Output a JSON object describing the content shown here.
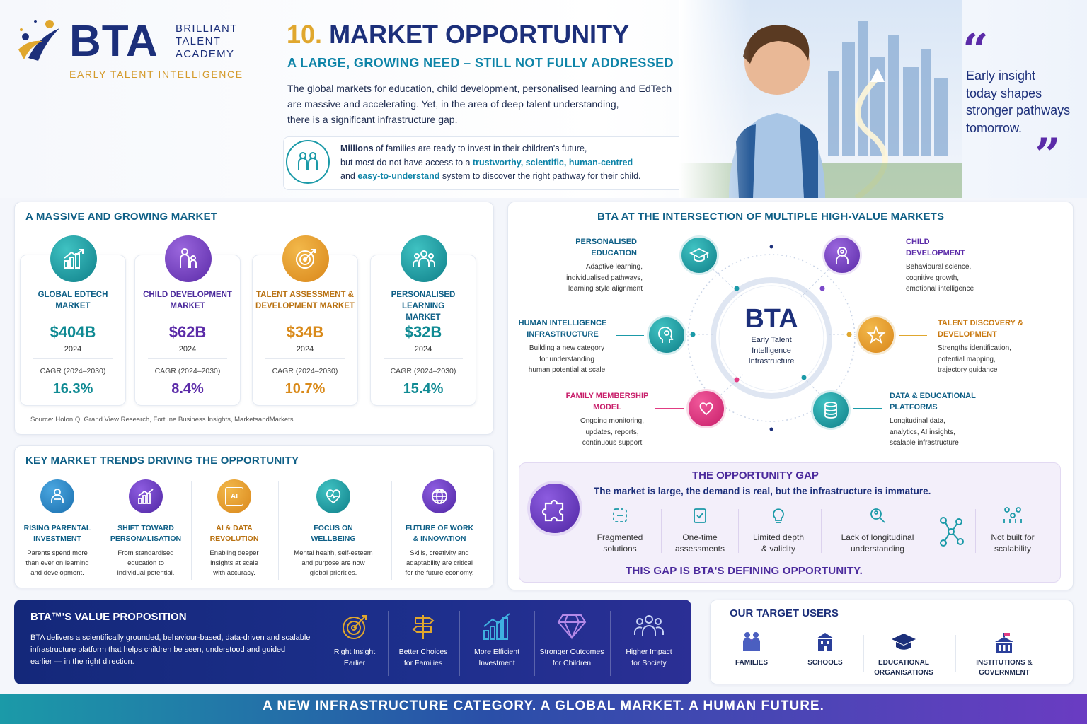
{
  "brand": {
    "logo_letters": "BTA",
    "name_line1": "BRILLIANT",
    "name_line2": "TALENT",
    "name_line3": "ACADEMY",
    "tagline": "EARLY TALENT INTELLIGENCE"
  },
  "header": {
    "number": "10.",
    "title": "MARKET OPPORTUNITY",
    "subtitle": "A LARGE, GROWING NEED – STILL NOT FULLY ADDRESSED",
    "intro": [
      "The global markets for education, child development, personalised learning and EdTech",
      "are massive and accelerating. Yet, in the area of deep talent understanding,",
      "there is a significant infrastructure gap."
    ],
    "callout": {
      "p1": "Millions",
      "p2": " of families are ready to invest in their children's future,",
      "p3": "but most do not have access to a ",
      "p4": "trustworthy, scientific, human-centred",
      "p5": "and ",
      "p6": "easy-to-understand",
      "p7": " system to discover the right pathway for their child."
    },
    "quote": [
      "Early insight",
      "today shapes",
      "stronger pathways",
      "tomorrow."
    ],
    "quote_open": "“",
    "quote_close": "”"
  },
  "market": {
    "title": "A MASSIVE AND GROWING MARKET",
    "source": "Source: HolonIQ, Grand View Research, Fortune Business Insights, MarketsandMarkets",
    "items": [
      {
        "name1": "GLOBAL EDTECH",
        "name2": "MARKET",
        "value": "$404B",
        "year": "2024",
        "cagr_label": "CAGR (2024–2030)",
        "cagr": "16.3%",
        "color": "#0f8a93",
        "icon": "chart-icon"
      },
      {
        "name1": "CHILD DEVELOPMENT",
        "name2": "MARKET",
        "value": "$62B",
        "year": "2024",
        "cagr_label": "CAGR (2024–2030)",
        "cagr": "8.4%",
        "color": "#5b2ba8",
        "icon": "parent-child-icon"
      },
      {
        "name1": "TALENT ASSESSMENT &",
        "name2": "DEVELOPMENT MARKET",
        "value": "$34B",
        "year": "2024",
        "cagr_label": "CAGR (2024–2030)",
        "cagr": "10.7%",
        "color": "#d98a1a",
        "icon": "target-icon"
      },
      {
        "name1": "PERSONALISED LEARNING",
        "name2": "MARKET",
        "value": "$32B",
        "year": "2024",
        "cagr_label": "CAGR (2024–2030)",
        "cagr": "15.4%",
        "color": "#0f8a93",
        "icon": "group-icon"
      }
    ]
  },
  "trends": {
    "title": "KEY MARKET TRENDS DRIVING THE OPPORTUNITY",
    "items": [
      {
        "t1": "RISING PARENTAL",
        "t2": "INVESTMENT",
        "d": [
          "Parents spend more",
          "than ever on learning",
          "and development."
        ]
      },
      {
        "t1": "SHIFT TOWARD",
        "t2": "PERSONALISATION",
        "d": [
          "From standardised",
          "education to",
          "individual potential."
        ]
      },
      {
        "t1": "AI & DATA",
        "t2": "REVOLUTION",
        "d": [
          "Enabling deeper",
          "insights at scale",
          "with accuracy."
        ],
        "chip": "AI"
      },
      {
        "t1": "FOCUS ON",
        "t2": "WELLBEING",
        "d": [
          "Mental health, self-esteem",
          "and purpose are now",
          "global priorities."
        ]
      },
      {
        "t1": "FUTURE OF WORK",
        "t2": "& INNOVATION",
        "d": [
          "Skills, creativity and",
          "adaptability are critical",
          "for the future economy."
        ]
      }
    ]
  },
  "intersection": {
    "title": "BTA AT THE INTERSECTION OF MULTIPLE HIGH-VALUE MARKETS",
    "center": {
      "logo": "BTA",
      "l1": "Early Talent",
      "l2": "Intelligence",
      "l3": "Infrastructure"
    },
    "nodes": [
      {
        "t1": "PERSONALISED",
        "t2": "EDUCATION",
        "d": [
          "Adaptive learning,",
          "individualised pathways,",
          "learning style alignment"
        ],
        "color": "#0e5f86"
      },
      {
        "t1": "CHILD",
        "t2": "DEVELOPMENT",
        "d": [
          "Behavioural science,",
          "cognitive growth,",
          "emotional intelligence"
        ],
        "color": "#5b2ba8"
      },
      {
        "t1": "HUMAN INTELLIGENCE",
        "t2": "INFRASTRUCTURE",
        "d": [
          "Building a new category",
          "for understanding",
          "human potential at scale"
        ],
        "color": "#0e5f86"
      },
      {
        "t1": "TALENT DISCOVERY &",
        "t2": "DEVELOPMENT",
        "d": [
          "Strengths identification,",
          "potential mapping,",
          "trajectory guidance"
        ],
        "color": "#c8780f"
      },
      {
        "t1": "FAMILY MEMBERSHIP",
        "t2": "MODEL",
        "d": [
          "Ongoing monitoring,",
          "updates, reports,",
          "continuous support"
        ],
        "color": "#c81e6a"
      },
      {
        "t1": "DATA & EDUCATIONAL",
        "t2": "PLATFORMS",
        "d": [
          "Longitudinal data,",
          "analytics, AI insights,",
          "scalable infrastructure"
        ],
        "color": "#0e5f86"
      }
    ]
  },
  "gap": {
    "title": "THE OPPORTUNITY GAP",
    "subtitle": "The market is large, the demand is real, but the infrastructure is immature.",
    "items": [
      {
        "l1": "Fragmented",
        "l2": "solutions"
      },
      {
        "l1": "One-time",
        "l2": "assessments"
      },
      {
        "l1": "Limited depth",
        "l2": "& validity"
      },
      {
        "l1": "Lack of longitudinal",
        "l2": "understanding"
      },
      {
        "l1": "Not built for",
        "l2": "scalability"
      }
    ],
    "footer": "THIS GAP IS BTA'S DEFINING OPPORTUNITY."
  },
  "value_prop": {
    "title": "BTA™'S VALUE PROPOSITION",
    "text": [
      "BTA delivers a scientifically grounded, behaviour-based, data-driven and scalable",
      "infrastructure platform that helps children be seen, understood and guided",
      "earlier — in the right direction."
    ],
    "items": [
      {
        "l1": "Right Insight",
        "l2": "Earlier"
      },
      {
        "l1": "Better Choices",
        "l2": "for Families"
      },
      {
        "l1": "More Efficient",
        "l2": "Investment"
      },
      {
        "l1": "Stronger Outcomes",
        "l2": "for Children"
      },
      {
        "l1": "Higher Impact",
        "l2": "for Society"
      }
    ]
  },
  "target_users": {
    "title": "OUR TARGET USERS",
    "items": [
      {
        "l1": "FAMILIES",
        "l2": ""
      },
      {
        "l1": "SCHOOLS",
        "l2": ""
      },
      {
        "l1": "EDUCATIONAL",
        "l2": "ORGANISATIONS"
      },
      {
        "l1": "INSTITUTIONS &",
        "l2": "GOVERNMENT"
      }
    ]
  },
  "banner": "A NEW INFRASTRUCTURE CATEGORY. A GLOBAL MARKET. A HUMAN FUTURE."
}
